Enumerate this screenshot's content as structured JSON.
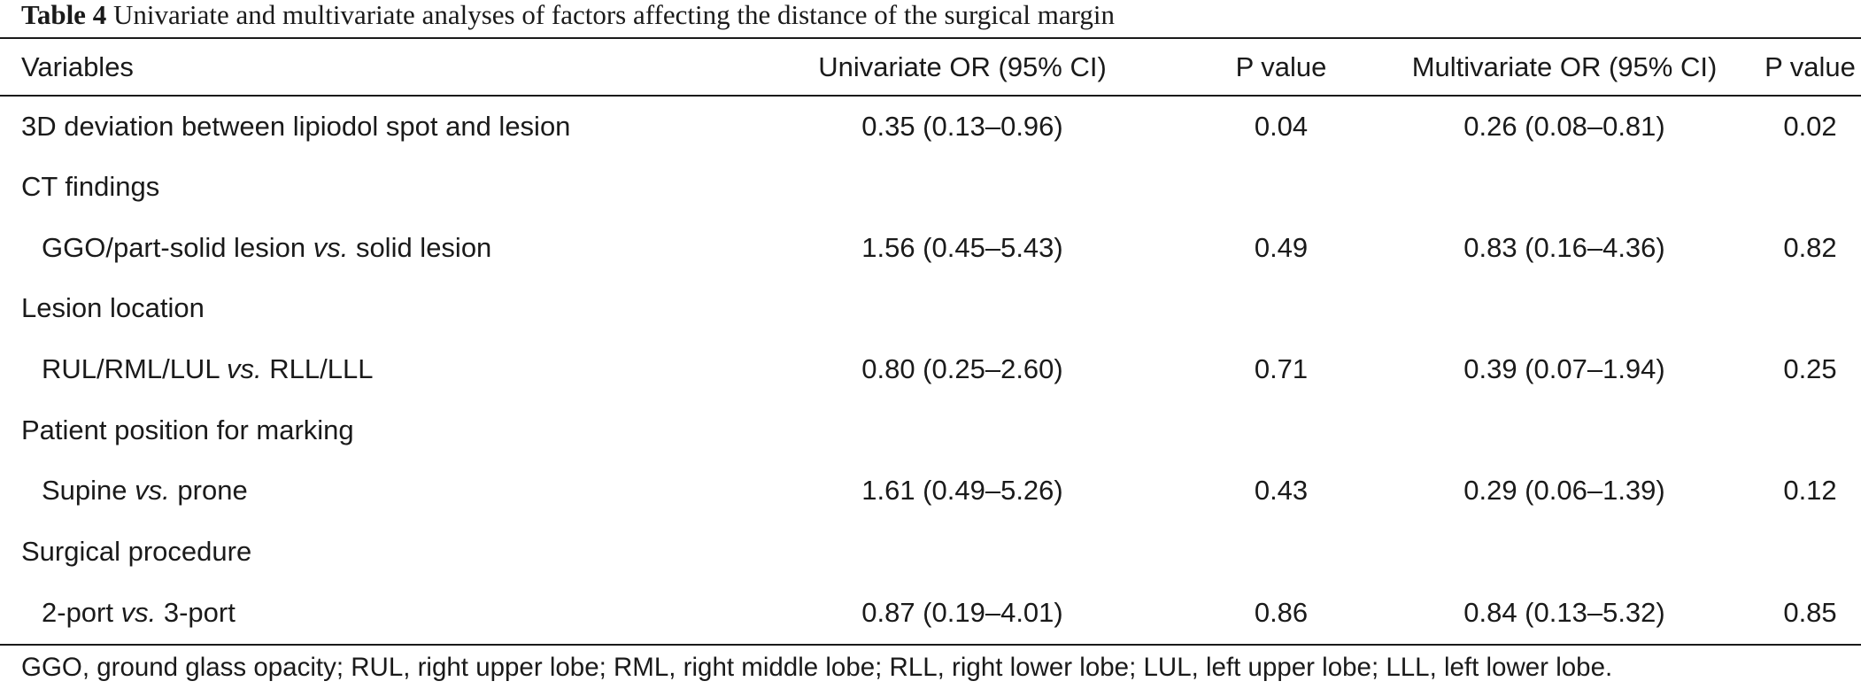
{
  "caption": {
    "number": "Table 4",
    "title": "Univariate and multivariate analyses of factors affecting the distance of the surgical margin"
  },
  "headers": [
    "Variables",
    "Univariate OR (95% CI)",
    "P value",
    "Multivariate OR (95% CI)",
    "P value"
  ],
  "rows": [
    {
      "label": "3D deviation between lipiodol spot and lesion",
      "uni_or": "0.35 (0.13–0.96)",
      "uni_p": "0.04",
      "multi_or": "0.26 (0.08–0.81)",
      "multi_p": "0.02"
    },
    {
      "label": "CT findings",
      "uni_or": "",
      "uni_p": "",
      "multi_or": "",
      "multi_p": ""
    },
    {
      "label_a": "GGO/part-solid lesion",
      "label_vs": "vs.",
      "label_b": "solid lesion",
      "uni_or": "1.56 (0.45–5.43)",
      "uni_p": "0.49",
      "multi_or": "0.83 (0.16–4.36)",
      "multi_p": "0.82"
    },
    {
      "label": "Lesion location",
      "uni_or": "",
      "uni_p": "",
      "multi_or": "",
      "multi_p": ""
    },
    {
      "label_a": "RUL/RML/LUL",
      "label_vs": "vs.",
      "label_b": "RLL/LLL",
      "uni_or": "0.80 (0.25–2.60)",
      "uni_p": "0.71",
      "multi_or": "0.39 (0.07–1.94)",
      "multi_p": "0.25"
    },
    {
      "label": "Patient position for marking",
      "uni_or": "",
      "uni_p": "",
      "multi_or": "",
      "multi_p": ""
    },
    {
      "label_a": "Supine",
      "label_vs": "vs.",
      "label_b": "prone",
      "uni_or": "1.61 (0.49–5.26)",
      "uni_p": "0.43",
      "multi_or": "0.29 (0.06–1.39)",
      "multi_p": "0.12"
    },
    {
      "label": "Surgical procedure",
      "uni_or": "",
      "uni_p": "",
      "multi_or": "",
      "multi_p": ""
    },
    {
      "label_a": "2-port",
      "label_vs": "vs.",
      "label_b": "3-port",
      "uni_or": "0.87 (0.19–4.01)",
      "uni_p": "0.86",
      "multi_or": "0.84 (0.13–5.32)",
      "multi_p": "0.85"
    }
  ],
  "footnote": "GGO, ground glass opacity; RUL, right upper lobe; RML, right middle lobe; RLL, right lower lobe; LUL, left upper lobe; LLL, left lower lobe."
}
